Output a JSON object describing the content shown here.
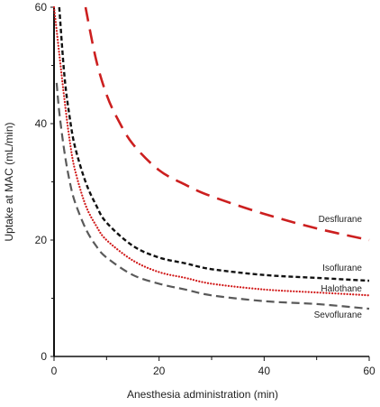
{
  "chart_data": {
    "type": "line",
    "title": "",
    "xlabel": "Anesthesia administration (min)",
    "ylabel": "Uptake at MAC (mL/min)",
    "xlim": [
      0,
      60
    ],
    "ylim": [
      0,
      60
    ],
    "x_ticks": [
      0,
      20,
      40,
      60
    ],
    "y_ticks": [
      0,
      20,
      40,
      60
    ],
    "grid": false,
    "legend": "inline labels at right end of each curve",
    "series": [
      {
        "name": "Desflurane",
        "color": "#cc1f1f",
        "style": "long-dash",
        "x": [
          6,
          8,
          10,
          12,
          15,
          20,
          25,
          30,
          40,
          50,
          60
        ],
        "y": [
          60,
          51,
          45,
          41,
          36.5,
          32,
          29.5,
          27.5,
          24.5,
          22,
          20
        ]
      },
      {
        "name": "Isoflurane",
        "color": "#111111",
        "style": "short-dash",
        "x": [
          1,
          2,
          3,
          4,
          6,
          8,
          10,
          15,
          20,
          25,
          30,
          40,
          50,
          60
        ],
        "y": [
          60,
          48,
          41,
          36,
          30,
          26,
          23,
          19,
          17,
          16,
          15,
          14,
          13.5,
          13
        ]
      },
      {
        "name": "Halothane",
        "color": "#d11a1a",
        "style": "dotted",
        "x": [
          0,
          1,
          2,
          3,
          4,
          6,
          8,
          10,
          15,
          20,
          25,
          30,
          40,
          50,
          60
        ],
        "y": [
          60,
          52,
          44,
          37,
          32,
          26,
          22.5,
          20,
          16.5,
          14.5,
          13.5,
          12.5,
          11.5,
          11,
          10.5
        ]
      },
      {
        "name": "Sevoflurane",
        "color": "#5a5a5a",
        "style": "dash",
        "x": [
          0.5,
          1,
          2,
          3,
          4,
          6,
          8,
          10,
          15,
          20,
          25,
          30,
          40,
          50,
          60
        ],
        "y": [
          47,
          42,
          35,
          30,
          26.5,
          22,
          19,
          17,
          14,
          12.5,
          11.5,
          10.5,
          9.5,
          9,
          8.2
        ]
      }
    ]
  }
}
